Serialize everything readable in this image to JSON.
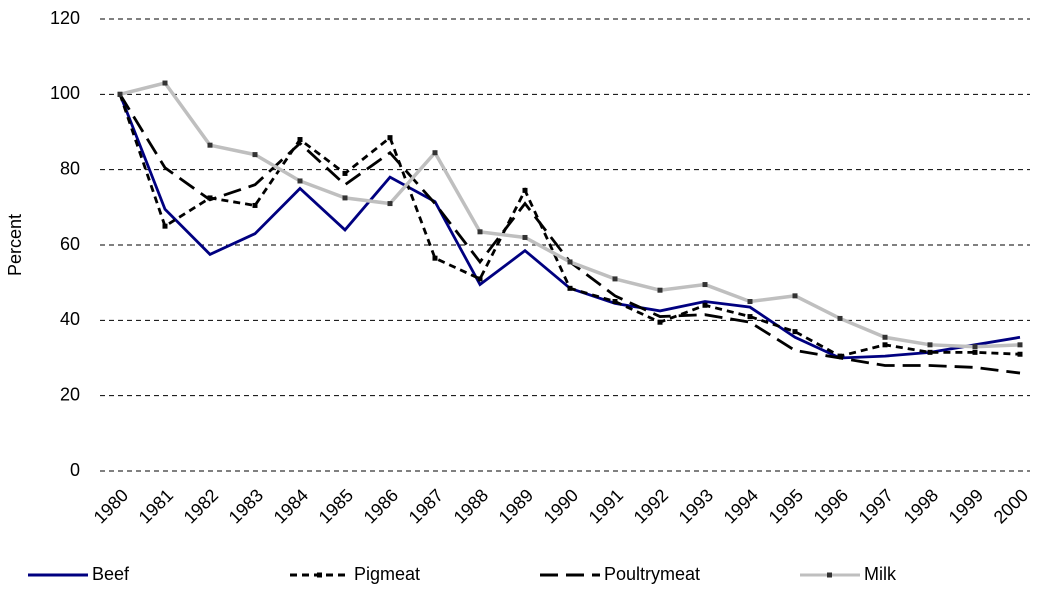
{
  "chart_data": {
    "type": "line",
    "y_label": "Percent",
    "categories": [
      "1980",
      "1981",
      "1982",
      "1983",
      "1984",
      "1985",
      "1986",
      "1987",
      "1988",
      "1989",
      "1990",
      "1991",
      "1992",
      "1993",
      "1994",
      "1995",
      "1996",
      "1997",
      "1998",
      "1999",
      "2000"
    ],
    "series": [
      {
        "name": "Beef",
        "color": "#000080",
        "dash": "none",
        "marker": false,
        "values": [
          100,
          69.5,
          57.5,
          63,
          75,
          64,
          78,
          71.5,
          49.5,
          58.5,
          48.5,
          44.5,
          42.5,
          45,
          43.5,
          35.5,
          30,
          30.5,
          31.5,
          33.5,
          35.5
        ]
      },
      {
        "name": "Pigmeat",
        "color": "#000000",
        "dash": "7 5",
        "marker": true,
        "values": [
          100,
          65,
          72.5,
          70.5,
          88,
          79,
          88.5,
          56.5,
          51,
          74.5,
          48.5,
          45,
          39.5,
          44,
          41,
          37,
          30.5,
          33.5,
          31.5,
          31.5,
          31
        ]
      },
      {
        "name": "Poultrymeat",
        "color": "#000000",
        "dash": "18 8",
        "marker": false,
        "values": [
          100,
          80.5,
          72,
          76,
          87,
          76,
          84.5,
          71,
          55.5,
          71,
          55.5,
          46.5,
          41,
          41.5,
          39.5,
          32,
          30,
          28,
          28,
          27.5,
          26
        ]
      },
      {
        "name": "Milk",
        "color": "#bfbfbf",
        "dash": "none",
        "marker": true,
        "values": [
          100,
          103,
          86.5,
          84,
          77,
          72.5,
          71,
          84.5,
          63.5,
          62,
          55.5,
          51,
          48,
          49.5,
          45,
          46.5,
          40.5,
          35.5,
          33.5,
          33,
          33.5
        ]
      }
    ],
    "ylim": [
      0,
      120
    ],
    "yticks": [
      0,
      20,
      40,
      60,
      80,
      100,
      120
    ],
    "grid": true,
    "legend": "bottom"
  }
}
